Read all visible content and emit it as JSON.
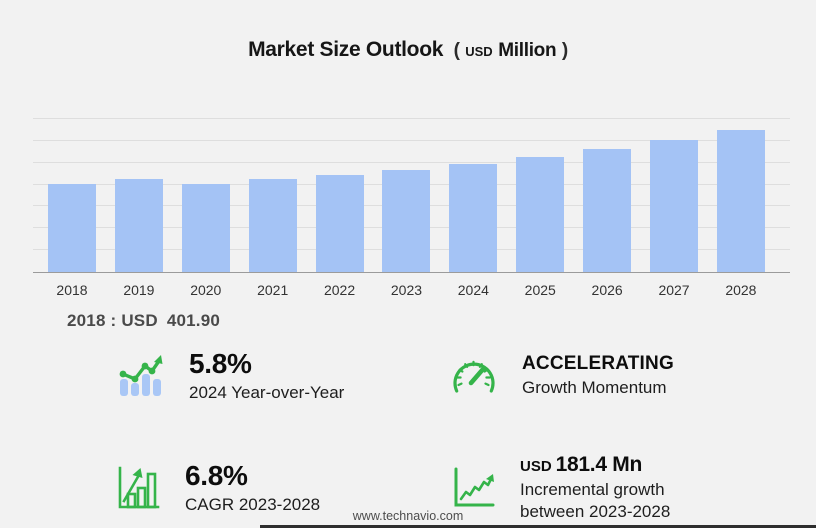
{
  "title": {
    "main": "Market Size Outlook",
    "open": "(",
    "currency": "USD",
    "unit": "Million",
    "close": ")"
  },
  "chart_data": {
    "type": "bar",
    "title": "Market Size Outlook (USD Million)",
    "categories": [
      "2018",
      "2019",
      "2020",
      "2021",
      "2022",
      "2023",
      "2024",
      "2025",
      "2026",
      "2027",
      "2028"
    ],
    "values": [
      401.9,
      424.5,
      403.5,
      426.0,
      444.5,
      466.2,
      493.2,
      527.0,
      561.0,
      602.5,
      647.6
    ],
    "xlabel": "",
    "ylabel": "",
    "ylim": [
      0,
      700
    ],
    "gridline_step": 100,
    "grid": true,
    "legend_position": "none",
    "bar_color": "#a4c3f5",
    "gridline_color": "#dedede",
    "axis_color": "#9b9b9b"
  },
  "callout": {
    "prefix": "2018 : USD",
    "value": "401.90"
  },
  "stats": [
    {
      "icon": "bar-trend-icon",
      "big": "5.8%",
      "sub": "2024 Year-over-Year"
    },
    {
      "icon": "speedometer-icon",
      "big": "ACCELERATING",
      "sub": "Growth Momentum"
    },
    {
      "icon": "growth-chart-icon",
      "big": "6.8%",
      "sub": "CAGR 2023-2028"
    },
    {
      "icon": "incremental-growth-icon",
      "big_prefix": "USD",
      "big": "181.4 Mn",
      "sub": "Incremental growth between 2023-2028"
    }
  ],
  "footer": {
    "url": "www.technavio.com"
  },
  "colors": {
    "background": "#f2f2f2",
    "accent_green": "#35b44a",
    "bar_blue": "#a4c3f5",
    "text_dark": "#111111",
    "text_gray": "#4a4a4a"
  }
}
